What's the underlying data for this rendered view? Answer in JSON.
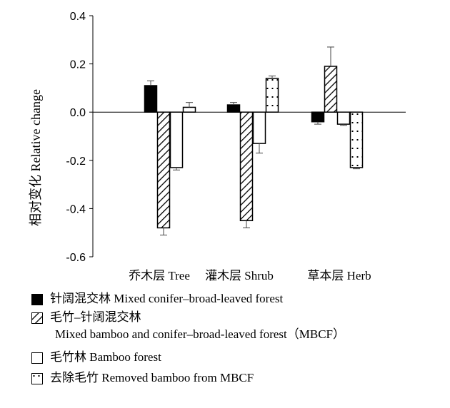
{
  "chart_data": {
    "type": "bar",
    "ylabel": "相对变化  Relative change",
    "xlabel": "",
    "ylim": [
      -0.6,
      0.4
    ],
    "yticks": [
      "0.4",
      "0.2",
      "0.0",
      "-0.2",
      "-0.4",
      "-0.6"
    ],
    "categories": [
      "乔木层 Tree",
      "灌木层 Shrub",
      "草本层 Herb"
    ],
    "series": [
      {
        "name": "针阔混交林 Mixed conifer–broad-leaved forest",
        "pattern": "solid-black",
        "values": [
          0.11,
          0.03,
          -0.04
        ],
        "errors": [
          0.02,
          0.01,
          0.01
        ]
      },
      {
        "name": "毛竹–针阔混交林 Mixed bamboo and conifer–broad-leaved forest (MBCF)",
        "pattern": "hatch",
        "values": [
          -0.48,
          -0.45,
          0.19
        ],
        "errors": [
          0.03,
          0.03,
          0.08
        ]
      },
      {
        "name": "毛竹林 Bamboo  forest",
        "pattern": "white",
        "values": [
          -0.23,
          -0.13,
          -0.05
        ],
        "errors": [
          0.01,
          0.04,
          0.005
        ]
      },
      {
        "name": "去除毛竹 Removed bamboo from MBCF",
        "pattern": "dots",
        "values": [
          0.02,
          0.14,
          -0.23
        ],
        "errors": [
          0.02,
          0.01,
          0.005
        ]
      }
    ],
    "legend_position": "bottom",
    "grid": false
  },
  "legend": {
    "item1": "针阔混交林 Mixed conifer–broad-leaved forest",
    "item2_line1": "毛竹–针阔混交林",
    "item2_line2": "Mixed bamboo and conifer–broad-leaved forest（MBCF）",
    "item3": "毛竹林 Bamboo  forest",
    "item4": "去除毛竹 Removed bamboo from MBCF"
  }
}
